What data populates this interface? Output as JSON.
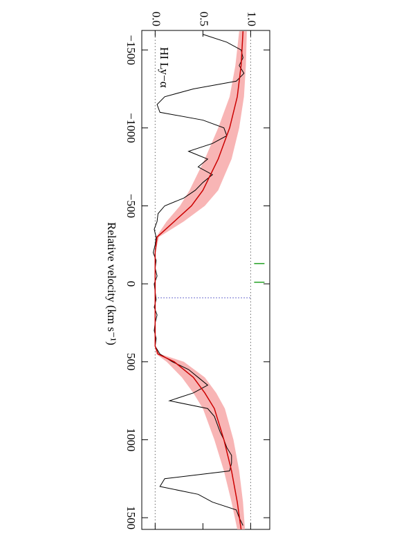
{
  "chart_data": {
    "type": "line",
    "x_label": "Relative velocity (km s⁻¹)",
    "annotation": "HI Ly−α",
    "x": [
      -1600,
      -1550,
      -1500,
      -1450,
      -1400,
      -1350,
      -1300,
      -1250,
      -1200,
      -1150,
      -1100,
      -1050,
      -1000,
      -950,
      -900,
      -850,
      -800,
      -750,
      -700,
      -650,
      -600,
      -550,
      -500,
      -450,
      -400,
      -350,
      -300,
      -250,
      -200,
      -150,
      -100,
      -50,
      0,
      50,
      100,
      150,
      200,
      250,
      300,
      350,
      400,
      450,
      500,
      550,
      600,
      650,
      700,
      750,
      800,
      850,
      900,
      950,
      1000,
      1050,
      1100,
      1150,
      1200,
      1250,
      1300,
      1350,
      1400,
      1450,
      1500,
      1550
    ],
    "values": [
      0.5,
      0.75,
      0.9,
      0.92,
      0.88,
      0.93,
      0.85,
      0.4,
      0.1,
      0.02,
      0.05,
      0.5,
      0.72,
      0.75,
      0.6,
      0.35,
      0.55,
      0.45,
      0.6,
      0.5,
      0.42,
      0.3,
      0.1,
      0.03,
      0.02,
      -0.01,
      0.01,
      0.0,
      -0.02,
      0.01,
      0.0,
      0.02,
      -0.01,
      0.0,
      0.01,
      -0.01,
      0.02,
      0.0,
      -0.01,
      0.01,
      0.0,
      0.05,
      0.18,
      0.35,
      0.45,
      0.55,
      0.4,
      0.15,
      0.55,
      0.62,
      0.65,
      0.68,
      0.72,
      0.75,
      0.8,
      0.8,
      0.78,
      0.1,
      0.05,
      0.45,
      0.6,
      0.85,
      0.88,
      0.92
    ],
    "color": "#000000",
    "model": {
      "x": [
        -1620,
        -1400,
        -1200,
        -1000,
        -800,
        -600,
        -500,
        -400,
        -300,
        -200,
        0,
        200,
        400,
        450,
        500,
        600,
        700,
        800,
        1000,
        1200,
        1400,
        1575
      ],
      "values": [
        0.92,
        0.9,
        0.86,
        0.78,
        0.66,
        0.5,
        0.38,
        0.2,
        0.02,
        0,
        0,
        0,
        0,
        0.03,
        0.2,
        0.4,
        0.52,
        0.62,
        0.72,
        0.8,
        0.86,
        0.9
      ],
      "lower": [
        0.88,
        0.84,
        0.78,
        0.66,
        0.52,
        0.36,
        0.26,
        0.12,
        0.01,
        0,
        0,
        0,
        0,
        0.01,
        0.12,
        0.28,
        0.4,
        0.5,
        0.62,
        0.72,
        0.8,
        0.86
      ],
      "upper": [
        0.96,
        0.95,
        0.93,
        0.88,
        0.8,
        0.66,
        0.52,
        0.3,
        0.04,
        0,
        0,
        0,
        0,
        0.05,
        0.3,
        0.52,
        0.64,
        0.73,
        0.82,
        0.88,
        0.92,
        0.94
      ],
      "color": "#cc0000",
      "band_color": "#f7a8a8"
    },
    "xlim": [
      -1625,
      1575
    ],
    "ylim": [
      -0.14,
      1.2
    ],
    "xticks": [
      {
        "value": -1500,
        "label": "−1500"
      },
      {
        "value": -1000,
        "label": "−1000"
      },
      {
        "value": -500,
        "label": "−500"
      },
      0,
      500,
      1000,
      1500
    ],
    "yticks": [
      {
        "value": 0,
        "label": "0.0"
      },
      {
        "value": 0.5,
        "label": "0.5"
      },
      {
        "value": 1,
        "label": "1.0"
      }
    ],
    "reference_lines": [
      0,
      1
    ],
    "systemic": 90,
    "systemic_color": "#4040c0",
    "components": [
      -130,
      -10
    ],
    "component_color": "#22a022"
  }
}
